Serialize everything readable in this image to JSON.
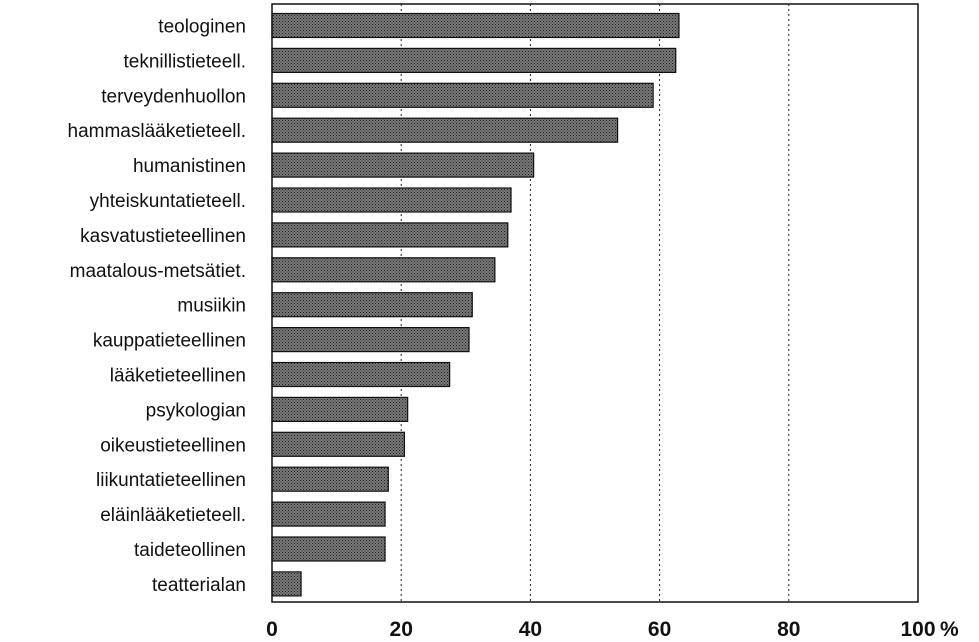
{
  "chart_data": {
    "type": "bar",
    "orientation": "horizontal",
    "categories": [
      "teologinen",
      "teknillistieteell.",
      "terveydenhuollon",
      "hammaslääketieteell.",
      "humanistinen",
      "yhteiskuntatieteell.",
      "kasvatustieteellinen",
      "maatalous-metsätiet.",
      "musiikin",
      "kauppatieteellinen",
      "lääketieteellinen",
      "psykologian",
      "oikeustieteellinen",
      "liikuntatieteellinen",
      "eläinlääketieteell.",
      "taideteollinen",
      "teatterialan"
    ],
    "values": [
      63,
      62.5,
      59,
      53.5,
      40.5,
      37,
      36.5,
      34.5,
      31,
      30.5,
      27.5,
      21,
      20.5,
      18,
      17.5,
      17.5,
      4.5
    ],
    "xlim": [
      0,
      100
    ],
    "ticks": [
      "0",
      "20",
      "40",
      "60",
      "80",
      "100"
    ],
    "tick_values": [
      0,
      20,
      40,
      60,
      80,
      100
    ],
    "unit": "%",
    "grid": "vertical dotted",
    "bar_color": "#6a6a6a",
    "title": "",
    "xlabel": "",
    "ylabel": ""
  }
}
